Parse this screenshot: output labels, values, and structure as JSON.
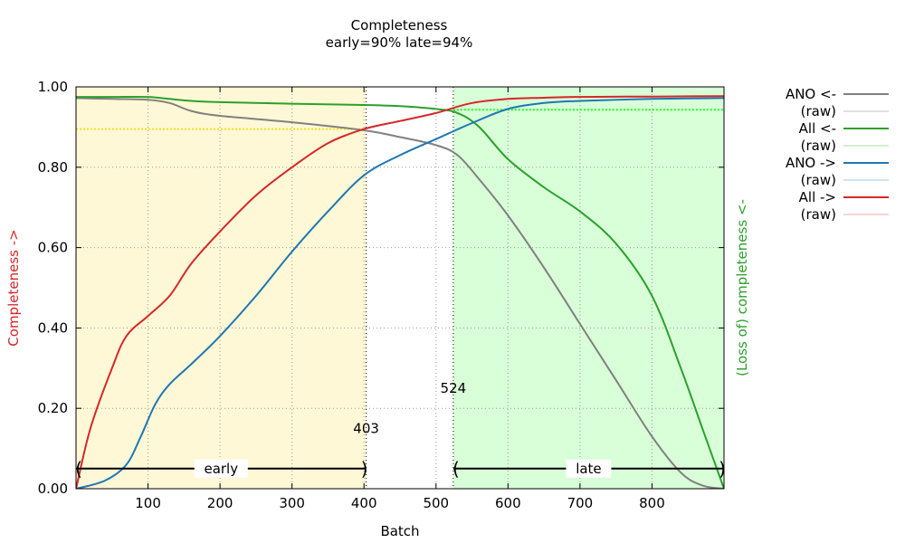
{
  "chart_data": {
    "type": "line",
    "title": "Completeness",
    "subtitle": "early=90% late=94%",
    "xlabel": "Batch",
    "ylabel_left": "Completeness ->",
    "ylabel_right": "(Loss of) completeness <-",
    "xlim": [
      0,
      900
    ],
    "ylim": [
      0,
      1
    ],
    "x_ticks": [
      100,
      200,
      300,
      400,
      500,
      600,
      700,
      800
    ],
    "y_ticks": [
      "0.00",
      "0.20",
      "0.40",
      "0.60",
      "0.80",
      "1.00"
    ],
    "grid": true,
    "legend_position": "right",
    "regions": [
      {
        "name": "early",
        "start": 0,
        "end": 403,
        "color": "#fff8d6",
        "label_value": "403",
        "label_y": 0.15
      },
      {
        "name": "late",
        "start": 524,
        "end": 900,
        "color": "#d8ffd8",
        "label_value": "524",
        "label_y": 0.25
      }
    ],
    "span_labels": {
      "early": "early",
      "late": "late"
    },
    "thresholds": [
      {
        "name": "early",
        "value": 0.895,
        "x_start": 0,
        "x_end": 403,
        "color": "#f0e020"
      },
      {
        "name": "late",
        "value": 0.943,
        "x_start": 524,
        "x_end": 900,
        "color": "#22ff22"
      }
    ],
    "series": [
      {
        "name": "ANO <-",
        "color": "#808080",
        "x": [
          0,
          50,
          100,
          130,
          160,
          200,
          300,
          400,
          450,
          500,
          530,
          560,
          600,
          650,
          700,
          750,
          800,
          840,
          870,
          900
        ],
        "y": [
          0.972,
          0.97,
          0.968,
          0.96,
          0.94,
          0.928,
          0.912,
          0.892,
          0.875,
          0.855,
          0.83,
          0.77,
          0.68,
          0.55,
          0.41,
          0.27,
          0.13,
          0.04,
          0.008,
          0.0
        ]
      },
      {
        "name": "(raw)",
        "color": "#c0c0c0"
      },
      {
        "name": "All <-",
        "color": "#2ca02c",
        "x": [
          0,
          50,
          100,
          130,
          160,
          200,
          300,
          400,
          450,
          500,
          530,
          560,
          600,
          650,
          700,
          750,
          800,
          840,
          870,
          900
        ],
        "y": [
          0.975,
          0.975,
          0.975,
          0.97,
          0.965,
          0.962,
          0.958,
          0.955,
          0.952,
          0.945,
          0.935,
          0.9,
          0.82,
          0.75,
          0.69,
          0.61,
          0.48,
          0.3,
          0.15,
          0.0
        ]
      },
      {
        "name": "(raw)",
        "color": "#a8e0a0"
      },
      {
        "name": "ANO ->",
        "color": "#1f77b4",
        "x": [
          0,
          40,
          70,
          90,
          110,
          130,
          160,
          200,
          250,
          300,
          350,
          400,
          450,
          500,
          550,
          600,
          650,
          700,
          800,
          900
        ],
        "y": [
          0.0,
          0.02,
          0.06,
          0.13,
          0.21,
          0.26,
          0.31,
          0.38,
          0.48,
          0.59,
          0.69,
          0.78,
          0.83,
          0.87,
          0.91,
          0.945,
          0.96,
          0.965,
          0.97,
          0.972
        ]
      },
      {
        "name": "(raw)",
        "color": "#a0c8e8"
      },
      {
        "name": "All ->",
        "color": "#d62728",
        "x": [
          0,
          20,
          50,
          70,
          100,
          130,
          160,
          200,
          250,
          300,
          350,
          400,
          450,
          500,
          550,
          600,
          650,
          700,
          800,
          900
        ],
        "y": [
          0.0,
          0.15,
          0.3,
          0.38,
          0.43,
          0.48,
          0.56,
          0.64,
          0.73,
          0.8,
          0.86,
          0.895,
          0.915,
          0.935,
          0.96,
          0.97,
          0.973,
          0.975,
          0.976,
          0.977
        ]
      },
      {
        "name": "(raw)",
        "color": "#f0a8a8"
      }
    ]
  }
}
